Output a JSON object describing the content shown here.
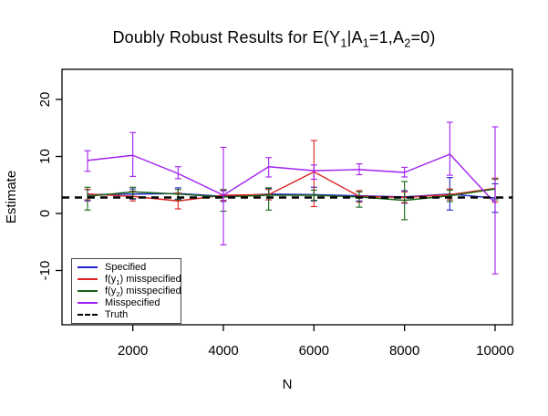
{
  "chart_data": {
    "type": "line",
    "title": "Doubly Robust Results for E(Y1|A1=1,A2=0)",
    "title_parts": [
      {
        "t": "Doubly Robust Results for E(Y"
      },
      {
        "sub": "1"
      },
      {
        "t": "|A"
      },
      {
        "sub": "1"
      },
      {
        "t": "=1,A"
      },
      {
        "sub": "2"
      },
      {
        "t": "=0)"
      }
    ],
    "xlabel": "N",
    "ylabel": "Estimate",
    "xlim": [
      1000,
      10000
    ],
    "ylim": [
      -19.5,
      25.3
    ],
    "x_ticks": [
      2000,
      4000,
      6000,
      8000,
      10000
    ],
    "y_ticks": [
      -10,
      0,
      10,
      20
    ],
    "grid": false,
    "legend_position": "bottom-left",
    "x": [
      1000,
      2000,
      3000,
      4000,
      5000,
      6000,
      7000,
      8000,
      9000,
      10000
    ],
    "truth_value": 2.8,
    "series": [
      {
        "name": "Specified",
        "label_parts": [
          {
            "t": "Specified"
          }
        ],
        "color": "#2121cc",
        "style": "solid",
        "values": [
          3.3,
          3.4,
          3.5,
          3.0,
          3.4,
          3.3,
          3.1,
          2.9,
          3.4,
          2.7
        ],
        "err_lo": [
          2.2,
          2.5,
          2.5,
          2.1,
          2.4,
          2.2,
          2.2,
          1.8,
          0.6,
          0.2
        ],
        "err_hi": [
          4.2,
          4.3,
          4.5,
          4.0,
          4.4,
          4.6,
          4.0,
          4.0,
          6.3,
          5.2
        ]
      },
      {
        "name": "f(y1) misspecified",
        "label_parts": [
          {
            "t": "f(y"
          },
          {
            "sub": "1"
          },
          {
            "t": ") misspecified"
          }
        ],
        "color": "#dd2222",
        "style": "solid",
        "values": [
          3.4,
          3.0,
          2.2,
          3.2,
          3.3,
          7.3,
          3.0,
          2.8,
          3.3,
          4.4
        ],
        "err_lo": [
          2.4,
          2.2,
          0.8,
          2.3,
          2.4,
          1.2,
          2.0,
          1.9,
          2.4,
          2.0
        ],
        "err_hi": [
          4.2,
          3.9,
          3.6,
          4.1,
          4.2,
          12.8,
          4.0,
          3.8,
          4.3,
          6.2
        ]
      },
      {
        "name": "f(y2) misspecified",
        "label_parts": [
          {
            "t": "f(y"
          },
          {
            "sub": "2"
          },
          {
            "t": ") misspecified"
          }
        ],
        "color": "#156415",
        "style": "solid",
        "values": [
          3.0,
          3.8,
          3.4,
          2.9,
          3.2,
          3.2,
          2.9,
          2.3,
          3.1,
          4.3
        ],
        "err_lo": [
          0.6,
          2.6,
          2.4,
          0.4,
          0.6,
          2.3,
          1.1,
          -1.1,
          2.1,
          2.4
        ],
        "err_hi": [
          4.6,
          4.6,
          4.2,
          4.2,
          4.5,
          4.1,
          3.8,
          5.6,
          4.1,
          6.0
        ]
      },
      {
        "name": "Misspecified",
        "label_parts": [
          {
            "t": "Misspecified"
          }
        ],
        "color": "#a020f0",
        "style": "solid",
        "values": [
          9.3,
          10.2,
          7.0,
          3.2,
          8.2,
          7.5,
          7.7,
          7.2,
          10.4,
          1.8
        ],
        "err_lo": [
          7.4,
          6.5,
          6.1,
          -5.5,
          6.4,
          6.0,
          6.8,
          6.4,
          6.7,
          -10.6
        ],
        "err_hi": [
          11.0,
          14.2,
          8.2,
          11.6,
          9.8,
          8.5,
          8.7,
          8.1,
          16.0,
          15.2
        ]
      },
      {
        "name": "Truth",
        "label_parts": [
          {
            "t": "Truth"
          }
        ],
        "color": "#000000",
        "style": "dashed",
        "constant": 2.8
      }
    ]
  }
}
